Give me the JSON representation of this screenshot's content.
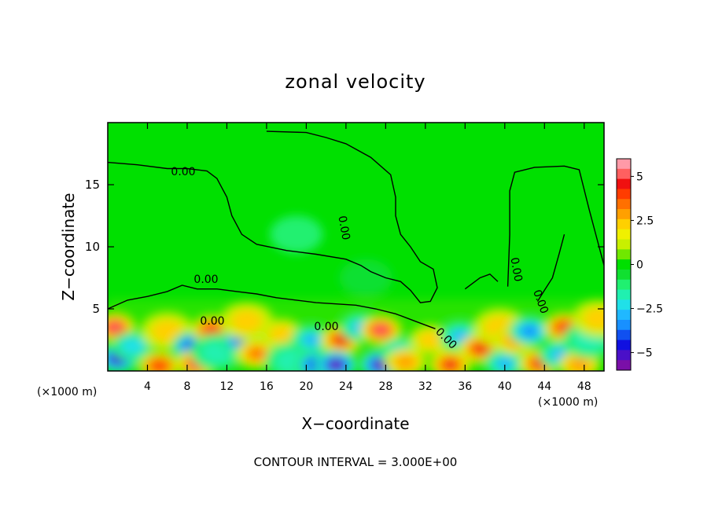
{
  "chart_data": {
    "type": "heatmap",
    "title": "zonal velocity",
    "xlabel": "X−coordinate",
    "ylabel": "Z−coordinate",
    "x_unit_left": "(×1000 m)",
    "x_unit_right": "(×1000 m)",
    "xlim": [
      0,
      50
    ],
    "ylim": [
      0,
      20
    ],
    "x_ticks": [
      4,
      8,
      12,
      16,
      20,
      24,
      28,
      32,
      36,
      40,
      44,
      48
    ],
    "x_tick_labels": [
      "4",
      "8",
      "12",
      "16",
      "20",
      "24",
      "28",
      "32",
      "36",
      "40",
      "44",
      "48"
    ],
    "y_ticks": [
      5,
      10,
      15
    ],
    "y_tick_labels": [
      "5",
      "10",
      "15"
    ],
    "footer": "CONTOUR INTERVAL = 3.000E+00",
    "contour_labels": [
      "0.00",
      "0.00",
      "0.00",
      "0.00",
      "0.00",
      "0.00",
      "0.00",
      "0.00"
    ],
    "colorbar": {
      "range": [
        -6,
        6
      ],
      "tick_values": [
        5,
        2.5,
        0,
        -2.5,
        -5
      ],
      "tick_labels": [
        "5",
        "2.5",
        "0",
        "−2.5",
        "−5"
      ],
      "colors": [
        "#7a0fa8",
        "#4a10c8",
        "#1010e0",
        "#1050f0",
        "#1890ff",
        "#20b8ff",
        "#20e0e8",
        "#20f0b0",
        "#20f070",
        "#10e030",
        "#00e000",
        "#70e800",
        "#c8f000",
        "#f0f000",
        "#ffd000",
        "#ffa000",
        "#ff7000",
        "#ff3c00",
        "#f01010",
        "#ff6060",
        "#ff9aa8"
      ]
    },
    "features": [
      {
        "x": 0.7,
        "z": 3.5,
        "value": 5
      },
      {
        "x": 1.0,
        "z": 1.0,
        "value": -5
      },
      {
        "x": 2.5,
        "z": 2.0,
        "value": -2.5
      },
      {
        "x": 5.2,
        "z": 0.4,
        "value": 4
      },
      {
        "x": 6.0,
        "z": 3.2,
        "value": 2
      },
      {
        "x": 8.5,
        "z": 2.0,
        "value": -4
      },
      {
        "x": 9.0,
        "z": 0.6,
        "value": 5
      },
      {
        "x": 10.5,
        "z": 3.3,
        "value": 4
      },
      {
        "x": 11.0,
        "z": 1.5,
        "value": -2
      },
      {
        "x": 13.5,
        "z": 2.5,
        "value": -4
      },
      {
        "x": 14.0,
        "z": 4.0,
        "value": 2
      },
      {
        "x": 15.0,
        "z": 1.4,
        "value": 3.5
      },
      {
        "x": 17.5,
        "z": 3.0,
        "value": 2.5
      },
      {
        "x": 18.5,
        "z": 0.8,
        "value": -2
      },
      {
        "x": 20.5,
        "z": 2.5,
        "value": -3
      },
      {
        "x": 21.0,
        "z": 0.5,
        "value": -4
      },
      {
        "x": 23.5,
        "z": 2.5,
        "value": 4.5
      },
      {
        "x": 23.0,
        "z": 0.5,
        "value": -6
      },
      {
        "x": 25.5,
        "z": 3.5,
        "value": -3
      },
      {
        "x": 27.5,
        "z": 3.3,
        "value": 5
      },
      {
        "x": 27.5,
        "z": 0.5,
        "value": -6
      },
      {
        "x": 29.5,
        "z": 1.5,
        "value": -3
      },
      {
        "x": 30.0,
        "z": 0.7,
        "value": 3
      },
      {
        "x": 32.5,
        "z": 2.5,
        "value": 2.5
      },
      {
        "x": 34.5,
        "z": 0.5,
        "value": 4.5
      },
      {
        "x": 35.5,
        "z": 2.8,
        "value": -3
      },
      {
        "x": 37.5,
        "z": 1.8,
        "value": 4.5
      },
      {
        "x": 39.5,
        "z": 3.5,
        "value": 2
      },
      {
        "x": 40.0,
        "z": 0.6,
        "value": -3
      },
      {
        "x": 41.0,
        "z": 2.5,
        "value": 3
      },
      {
        "x": 42.5,
        "z": 3.2,
        "value": -3.5
      },
      {
        "x": 43.5,
        "z": 0.6,
        "value": 4.5
      },
      {
        "x": 45.5,
        "z": 1.3,
        "value": -3
      },
      {
        "x": 46.0,
        "z": 3.5,
        "value": 4
      },
      {
        "x": 47.5,
        "z": 0.5,
        "value": 3
      },
      {
        "x": 48.5,
        "z": 2.5,
        "value": -2
      },
      {
        "x": 49.5,
        "z": 4.2,
        "value": 2
      },
      {
        "x": 19.0,
        "z": 11.0,
        "value": -1.2
      },
      {
        "x": 26.0,
        "z": 7.5,
        "value": -0.8
      }
    ],
    "zero_contours": [
      [
        [
          0,
          16.8
        ],
        [
          3,
          16.6
        ],
        [
          6,
          16.3
        ],
        [
          8,
          16.3
        ],
        [
          10,
          16.1
        ],
        [
          11,
          15.5
        ],
        [
          12,
          14.0
        ],
        [
          12.5,
          12.5
        ],
        [
          13.5,
          11.0
        ],
        [
          15,
          10.2
        ],
        [
          18,
          9.7
        ],
        [
          21,
          9.4
        ],
        [
          24,
          9.0
        ],
        [
          25.5,
          8.5
        ],
        [
          26.5,
          8.0
        ],
        [
          28,
          7.5
        ],
        [
          29.5,
          7.2
        ],
        [
          30.5,
          6.5
        ],
        [
          31.5,
          5.5
        ],
        [
          32.5,
          5.6
        ],
        [
          33.2,
          6.7
        ],
        [
          32.8,
          8.2
        ],
        [
          31.5,
          8.8
        ],
        [
          30.5,
          10.0
        ],
        [
          29.5,
          11.0
        ],
        [
          29.0,
          12.5
        ],
        [
          29.0,
          14.0
        ],
        [
          28.5,
          15.8
        ],
        [
          26.5,
          17.2
        ],
        [
          24.0,
          18.3
        ],
        [
          22.0,
          18.8
        ],
        [
          20.0,
          19.2
        ],
        [
          16.0,
          19.3
        ]
      ],
      [
        [
          0,
          5.0
        ],
        [
          2,
          5.7
        ],
        [
          4,
          6.0
        ],
        [
          6,
          6.4
        ],
        [
          7.5,
          6.9
        ],
        [
          9,
          6.6
        ],
        [
          11,
          6.6
        ],
        [
          13,
          6.4
        ],
        [
          15,
          6.2
        ],
        [
          17,
          5.9
        ],
        [
          19,
          5.7
        ],
        [
          21,
          5.5
        ],
        [
          23,
          5.4
        ],
        [
          25,
          5.3
        ],
        [
          27,
          5.0
        ],
        [
          29,
          4.6
        ],
        [
          31,
          4.0
        ],
        [
          33,
          3.4
        ]
      ],
      [
        [
          40.3,
          6.8
        ],
        [
          40.5,
          11.0
        ],
        [
          40.5,
          14.5
        ],
        [
          41.0,
          16.0
        ],
        [
          43.0,
          16.4
        ],
        [
          46.0,
          16.5
        ],
        [
          47.5,
          16.2
        ],
        [
          48.5,
          13.0
        ],
        [
          49.5,
          10.0
        ],
        [
          50,
          8.5
        ]
      ],
      [
        [
          36,
          6.6
        ],
        [
          37.5,
          7.5
        ],
        [
          38.5,
          7.8
        ],
        [
          39.3,
          7.2
        ]
      ],
      [
        [
          43.3,
          5.6
        ],
        [
          44.0,
          6.5
        ],
        [
          44.8,
          7.5
        ],
        [
          45.5,
          9.5
        ],
        [
          46.0,
          11.0
        ]
      ]
    ]
  }
}
